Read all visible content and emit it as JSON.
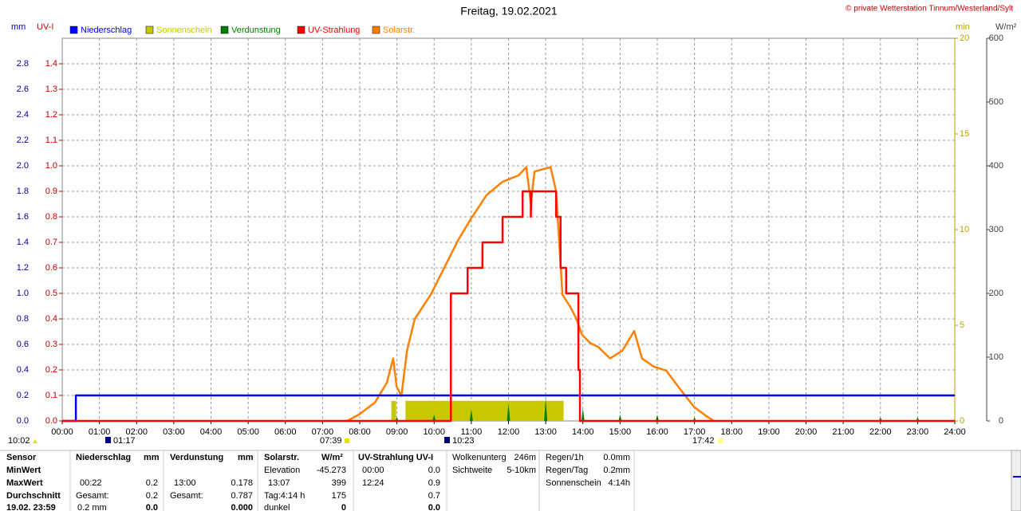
{
  "chart_data": {
    "type": "combo",
    "title": "Freitag, 19.02.2021",
    "copyright": "© private Wetterstation Tinnum/Westerland/Sylt",
    "y_label": "mm",
    "y2_label": "UV-I",
    "y3_label": "min",
    "y4_label": "W/m²",
    "xlim": [
      0,
      24
    ],
    "xticks": [
      {
        "value": 0,
        "label": "00:00"
      },
      {
        "value": 1,
        "label": "01:00"
      },
      {
        "value": 2,
        "label": "02:00"
      },
      {
        "value": 3,
        "label": "03:00"
      },
      {
        "value": 4,
        "label": "04:00"
      },
      {
        "value": 5,
        "label": "05:00"
      },
      {
        "value": 6,
        "label": "06:00"
      },
      {
        "value": 7,
        "label": "07:00"
      },
      {
        "value": 8,
        "label": "08:00"
      },
      {
        "value": 9,
        "label": "09:00"
      },
      {
        "value": 10,
        "label": "10:00"
      },
      {
        "value": 11,
        "label": "11:00"
      },
      {
        "value": 12,
        "label": "12:00"
      },
      {
        "value": 13,
        "label": "13:00"
      },
      {
        "value": 14,
        "label": "14:00"
      },
      {
        "value": 15,
        "label": "15:00"
      },
      {
        "value": 16,
        "label": "16:00"
      },
      {
        "value": 17,
        "label": "17:00"
      },
      {
        "value": 18,
        "label": "18:00"
      },
      {
        "value": 19,
        "label": "19:00"
      },
      {
        "value": 20,
        "label": "20:00"
      },
      {
        "value": 21,
        "label": "21:00"
      },
      {
        "value": 22,
        "label": "22:00"
      },
      {
        "value": 23,
        "label": "23:00"
      },
      {
        "value": 24,
        "label": "24:00"
      }
    ],
    "ylim": [
      0,
      3.0
    ],
    "yticks": [
      {
        "value": 0,
        "label": "0.0"
      },
      0.2,
      0.4,
      0.6,
      0.8,
      {
        "value": 1,
        "label": "1.0"
      },
      1.2,
      1.4,
      1.6,
      1.8,
      {
        "value": 2,
        "label": "2.0"
      },
      2.2,
      2.4,
      2.6,
      2.8
    ],
    "y2lim": [
      0,
      1.5
    ],
    "y2ticks": [
      {
        "value": 0,
        "label": "0.0"
      },
      0.1,
      0.2,
      0.3,
      0.4,
      0.5,
      0.6,
      0.7,
      0.8,
      0.9,
      {
        "value": 1,
        "label": "1.0"
      },
      1.1,
      1.2,
      1.3,
      1.4
    ],
    "y3lim": [
      0,
      20
    ],
    "y3ticks": [
      0,
      5,
      10,
      15,
      20
    ],
    "y4lim": [
      0,
      600
    ],
    "y4ticks": [
      0,
      100,
      200,
      300,
      400,
      500,
      600
    ],
    "grid": true,
    "annotations": [
      "10:02",
      "01:17",
      "07:39",
      "10:23",
      "17:42"
    ],
    "series": [
      {
        "name": "Niederschlag",
        "type": "line",
        "axis": "y",
        "color": "#0000ff",
        "x": [
          0,
          0.367,
          0.367,
          24
        ],
        "values": [
          0,
          0,
          0.2,
          0.2
        ]
      },
      {
        "name": "Sonnenschein",
        "type": "histogram",
        "axis": "y3",
        "color": "#c8c800",
        "bins": [
          8.85,
          8.98,
          9.23,
          13.48
        ],
        "values": [
          1.05,
          0,
          1.05
        ]
      },
      {
        "name": "Verdunstung",
        "type": "spike",
        "axis": "y",
        "color": "#008000",
        "x": [
          9,
          10,
          11,
          12,
          13,
          14,
          15,
          16,
          17,
          22,
          23
        ],
        "values": [
          0.03,
          0.05,
          0.09,
          0.14,
          0.178,
          0.1,
          0.05,
          0.05,
          0.03,
          0.03,
          0.03
        ]
      },
      {
        "name": "UV-Strahlung",
        "type": "line",
        "axis": "y2",
        "color": "#ff0000",
        "x": [
          0,
          10.45,
          10.45,
          10.9,
          10.9,
          11.3,
          11.3,
          11.84,
          11.84,
          12.38,
          12.38,
          12.6,
          12.6,
          12.62,
          13.28,
          13.28,
          13.4,
          13.4,
          13.55,
          13.55,
          13.88,
          13.88,
          13.92,
          13.92,
          24
        ],
        "values": [
          0,
          0,
          0.5,
          0.5,
          0.6,
          0.6,
          0.7,
          0.7,
          0.8,
          0.8,
          0.9,
          0.9,
          0.8,
          0.9,
          0.9,
          0.8,
          0.8,
          0.6,
          0.6,
          0.5,
          0.5,
          0.2,
          0.2,
          0,
          0
        ]
      },
      {
        "name": "Solarstr.",
        "type": "line",
        "axis": "y4",
        "color": "#ff8000",
        "x": [
          7.66,
          7.98,
          8.41,
          8.73,
          8.9,
          8.99,
          9.12,
          9.27,
          9.48,
          9.91,
          10.34,
          10.66,
          10.98,
          11.41,
          11.84,
          12.27,
          12.48,
          12.6,
          12.7,
          13.13,
          13.28,
          13.45,
          13.66,
          13.81,
          13.98,
          14.2,
          14.41,
          14.73,
          15.06,
          15.38,
          15.59,
          15.91,
          16.24,
          16.56,
          16.99,
          17.31,
          17.52
        ],
        "values": [
          0,
          10,
          29,
          60,
          98,
          54,
          39,
          110,
          160,
          198,
          248,
          285,
          316,
          354,
          375,
          385,
          398,
          341,
          391,
          398,
          360,
          198,
          179,
          162,
          135,
          122,
          116,
          98,
          110,
          141,
          98,
          85,
          79,
          54,
          22,
          8,
          0
        ]
      }
    ]
  },
  "stats": {
    "row_labels": [
      "Sensor",
      "MinWert",
      "MaxWert",
      "Durchschnitt",
      "19.02. 23:59"
    ],
    "rain": {
      "title": "Niederschlag",
      "unit": "mm",
      "max_time": "00:22",
      "max": "0.2",
      "total_label": "Gesamt:",
      "total": "0.2",
      "current_label": "0.2 mm",
      "current": "0.0"
    },
    "evaporation": {
      "title": "Verdunstung",
      "unit": "mm",
      "max_time": "13:00",
      "max": "0.178",
      "total_label": "Gesamt:",
      "total": "0.787",
      "current": "0.000"
    },
    "solar": {
      "title": "Solarstr.",
      "unit": "W/m²",
      "min_label": "Elevation",
      "min": "-45.273",
      "max_time": "13:07",
      "max": "399",
      "avg_label": "Tag:4:14 h",
      "avg": "175",
      "current_label": "dunkel",
      "current": "0"
    },
    "uv": {
      "title": "UV-Strahlung UV-I",
      "min_time": "00:00",
      "min": "0.0",
      "max_time": "12:24",
      "max": "0.9",
      "avg": "0.7",
      "current": "0.0"
    },
    "info": [
      [
        "Wolkenunterg",
        "246m"
      ],
      [
        "Sichtweite",
        "5-10km"
      ]
    ],
    "rain_info": [
      [
        "Regen/1h",
        "0.0mm"
      ],
      [
        "Regen/Tag",
        "0.2mm"
      ],
      [
        "Sonnenschein",
        "4:14h"
      ]
    ]
  }
}
